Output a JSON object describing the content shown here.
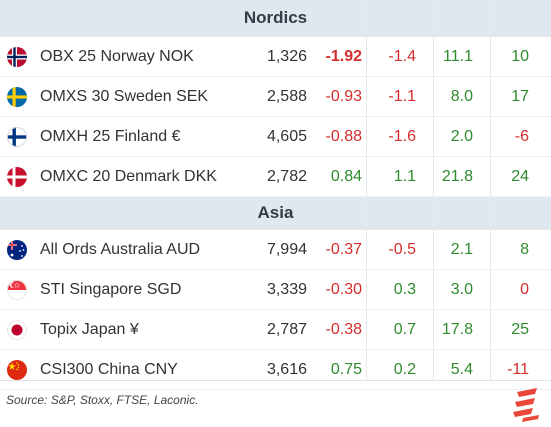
{
  "sections": [
    {
      "title": "Nordics",
      "rows": [
        {
          "flag": "norway-flag-icon",
          "name": "OBX 25 Norway NOK",
          "level": "1,326",
          "day": "-1.92",
          "week": "-1.4",
          "month": "11.1",
          "ytd": "10"
        },
        {
          "flag": "sweden-flag-icon",
          "name": "OMXS 30 Sweden SEK",
          "level": "2,588",
          "day": "-0.93",
          "week": "-1.1",
          "month": "8.0",
          "ytd": "17"
        },
        {
          "flag": "finland-flag-icon",
          "name": "OMXH 25 Finland  €",
          "level": "4,605",
          "day": "-0.88",
          "week": "-1.6",
          "month": "2.0",
          "ytd": "-6"
        },
        {
          "flag": "denmark-flag-icon",
          "name": "OMXC 20 Denmark DKK",
          "level": "2,782",
          "day": "0.84",
          "week": "1.1",
          "month": "21.8",
          "ytd": "24"
        }
      ]
    },
    {
      "title": "Asia",
      "rows": [
        {
          "flag": "australia-flag-icon",
          "name": "All Ords Australia AUD",
          "level": "7,994",
          "day": "-0.37",
          "week": "-0.5",
          "month": "2.1",
          "ytd": "8"
        },
        {
          "flag": "singapore-flag-icon",
          "name": "STI Singapore SGD",
          "level": "3,339",
          "day": "-0.30",
          "week": "0.3",
          "month": "3.0",
          "ytd": "0"
        },
        {
          "flag": "japan-flag-icon",
          "name": "Topix Japan  ¥",
          "level": "2,787",
          "day": "-0.38",
          "week": "0.7",
          "month": "17.8",
          "ytd": "25"
        },
        {
          "flag": "china-flag-icon",
          "name": "CSI300 China CNY",
          "level": "3,616",
          "day": "0.75",
          "week": "0.2",
          "month": "5.4",
          "ytd": "-11"
        }
      ]
    }
  ],
  "footer": {
    "source": "Source:  S&P, Stoxx, FTSE, Laconic."
  },
  "colors": {
    "negative": "#d42d2d",
    "positive": "#2e8b2e",
    "header_bg": "#dfe7ef",
    "logo": "#e8473a"
  }
}
